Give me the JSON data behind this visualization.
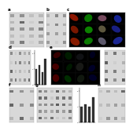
{
  "background_color": "#ffffff",
  "wb_bg": "#d8d8d8",
  "wb_band_dark": "#404040",
  "wb_band_light": "#b0b0b0",
  "if_bg": "#000000",
  "if_colors_col": [
    "#cc2200",
    "#11cc00",
    "#888888",
    "#2244dd"
  ],
  "if_dim_colors_col": [
    "#661100",
    "#004400",
    "#333333",
    "#001166"
  ],
  "bar_color": "#333333",
  "panel_label_fs": 4
}
